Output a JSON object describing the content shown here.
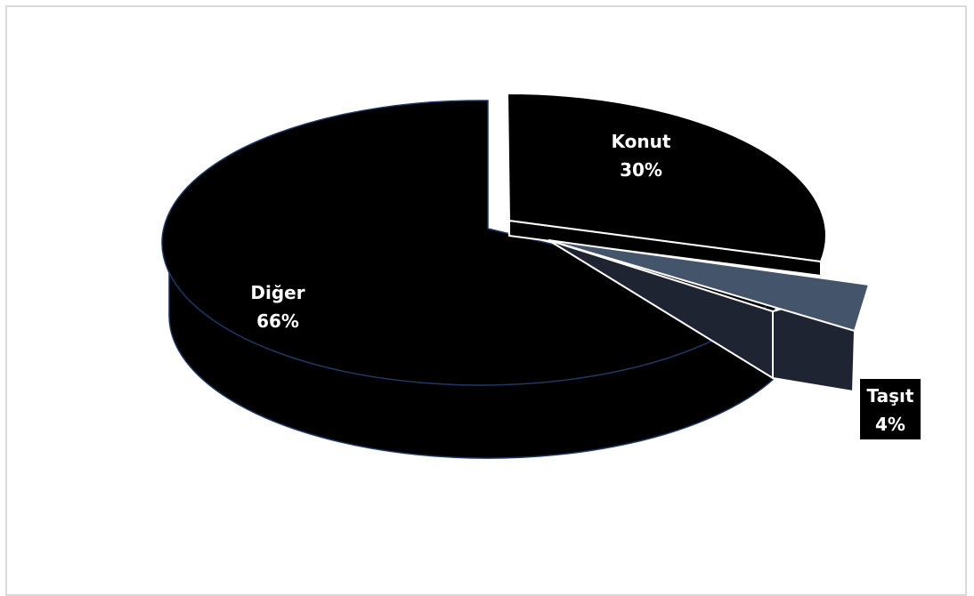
{
  "chart_data": {
    "type": "pie",
    "title": "",
    "three_d": true,
    "exploded": true,
    "legend": "none",
    "categories": [
      "Konut",
      "Taşıt",
      "Diğer"
    ],
    "values": [
      30,
      4,
      66
    ],
    "labels": [
      {
        "category": "Konut",
        "percent": "30%"
      },
      {
        "category": "Taşıt",
        "percent": "4%"
      },
      {
        "category": "Diğer",
        "percent": "66%"
      }
    ],
    "colors": {
      "konut_top": "#000000",
      "konut_side": "#000000",
      "tasit_top": "#44546a",
      "tasit_side": "#1e2431",
      "diger_top": "#000000",
      "diger_side": "#000000",
      "outline": "#ffffff",
      "diger_edge": "#1f3864",
      "label_text": "#ffffff",
      "label_box": "#000000"
    }
  }
}
